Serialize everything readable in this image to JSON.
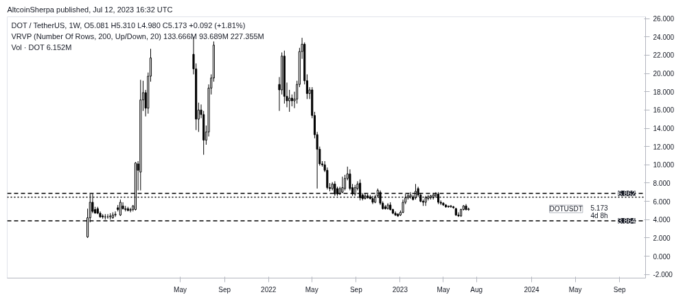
{
  "chart_data": {
    "type": "candlestick",
    "title": "DOT / TetherUS, 1W, O5.081 H5.310 L4.980 C5.173 +0.092 (+1.81%)",
    "subtitle": "VRVP (Number Of Rows, 200, Up/Down, 20) 133.666M 93.689M 227.355M",
    "annotations": [
      "AltcoinSherpa published, Jul 12, 2023 16:32 UTC",
      "Vol · DOT 6.152M",
      "DOTUSDT",
      "5.173",
      "4d 8h"
    ],
    "x": [
      "2020-08-17",
      "2020-08-24",
      "2020-08-31",
      "2020-09-07",
      "2020-09-14",
      "2020-09-21",
      "2020-09-28",
      "2020-10-05",
      "2020-10-12",
      "2020-10-19",
      "2020-10-26",
      "2020-11-02",
      "2020-11-09",
      "2020-11-16",
      "2020-11-23",
      "2020-11-30",
      "2020-12-07",
      "2020-12-14",
      "2020-12-21",
      "2020-12-28",
      "2021-01-04",
      "2021-01-11",
      "2021-01-18",
      "2021-01-25",
      "2021-02-01",
      "2021-02-08",
      "2021-06-07",
      "2021-06-14",
      "2021-06-21",
      "2021-06-28",
      "2021-07-05",
      "2021-07-12",
      "2021-07-19",
      "2021-07-26",
      "2021-08-02",
      "2022-01-31",
      "2022-02-07",
      "2022-02-14",
      "2022-02-21",
      "2022-02-28",
      "2022-03-07",
      "2022-03-14",
      "2022-03-21",
      "2022-03-28",
      "2022-04-04",
      "2022-04-11",
      "2022-04-18",
      "2022-04-25",
      "2022-05-02",
      "2022-05-09",
      "2022-05-16",
      "2022-05-23",
      "2022-05-30",
      "2022-06-06",
      "2022-06-13",
      "2022-06-20",
      "2022-06-27",
      "2022-07-04",
      "2022-07-11",
      "2022-07-18",
      "2022-07-25",
      "2022-08-01",
      "2022-08-08",
      "2022-08-15",
      "2022-08-22",
      "2022-08-29",
      "2022-09-05",
      "2022-09-12",
      "2022-09-19",
      "2022-09-26",
      "2022-10-03",
      "2022-10-10",
      "2022-10-17",
      "2022-10-24",
      "2022-10-31",
      "2022-11-07",
      "2022-11-14",
      "2022-11-21",
      "2022-11-28",
      "2022-12-05",
      "2022-12-12",
      "2022-12-19",
      "2022-12-26",
      "2023-01-02",
      "2023-01-09",
      "2023-01-16",
      "2023-01-23",
      "2023-01-30",
      "2023-02-06",
      "2023-02-13",
      "2023-02-20",
      "2023-02-27",
      "2023-03-06",
      "2023-03-13",
      "2023-03-20",
      "2023-03-27",
      "2023-04-03",
      "2023-04-10",
      "2023-04-17",
      "2023-04-24",
      "2023-05-01",
      "2023-05-08",
      "2023-05-15",
      "2023-05-22",
      "2023-05-29",
      "2023-06-05",
      "2023-06-12",
      "2023-06-19",
      "2023-06-26",
      "2023-07-03",
      "2023-07-10"
    ],
    "ohlc": [
      [
        2.1,
        5.2,
        2.0,
        4.2
      ],
      [
        4.2,
        6.8,
        3.7,
        5.9
      ],
      [
        5.9,
        6.862,
        4.7,
        4.9
      ],
      [
        5.1,
        5.4,
        4.7,
        4.7
      ],
      [
        5.2,
        5.4,
        4.6,
        4.7
      ],
      [
        4.7,
        4.9,
        4.2,
        4.3
      ],
      [
        4.4,
        4.6,
        4.1,
        4.3
      ],
      [
        4.3,
        4.6,
        4.0,
        4.3
      ],
      [
        4.3,
        4.6,
        4.1,
        4.3
      ],
      [
        4.3,
        4.7,
        4.0,
        4.4
      ],
      [
        4.2,
        4.8,
        4.1,
        4.5
      ],
      [
        4.5,
        4.9,
        4.3,
        4.6
      ],
      [
        5.3,
        5.6,
        4.9,
        5.1
      ],
      [
        4.5,
        6.2,
        4.4,
        5.9
      ],
      [
        5.5,
        5.9,
        5.1,
        5.2
      ],
      [
        5.1,
        5.5,
        4.9,
        5.2
      ],
      [
        5.2,
        5.4,
        4.9,
        5.0
      ],
      [
        5.0,
        5.3,
        4.8,
        5.1
      ],
      [
        5.1,
        5.6,
        4.9,
        5.5
      ],
      [
        5.1,
        10.3,
        5.0,
        10.2
      ],
      [
        10.1,
        10.4,
        7.2,
        9.4
      ],
      [
        9.2,
        19.3,
        7.2,
        17.1
      ],
      [
        17.1,
        19.2,
        15.9,
        17.9
      ],
      [
        17.9,
        18.2,
        15.3,
        16.2
      ],
      [
        16.2,
        20.1,
        15.6,
        19.7
      ],
      [
        19.7,
        22.7,
        19.1,
        21.7
      ],
      [
        22.1,
        24.0,
        19.9,
        20.5
      ],
      [
        20.5,
        21.1,
        13.8,
        15.0
      ],
      [
        15.0,
        16.8,
        13.6,
        16.0
      ],
      [
        16.0,
        16.6,
        15.1,
        15.5
      ],
      [
        15.5,
        15.9,
        11.1,
        12.7
      ],
      [
        12.7,
        14.3,
        12.2,
        13.6
      ],
      [
        13.6,
        18.8,
        13.1,
        18.4
      ],
      [
        18.4,
        19.9,
        17.7,
        19.5
      ],
      [
        19.5,
        23.5,
        19.1,
        23.1
      ],
      [
        18.8,
        19.6,
        15.9,
        18.2
      ],
      [
        18.2,
        22.3,
        17.7,
        21.9
      ],
      [
        21.9,
        22.5,
        16.7,
        17.5
      ],
      [
        17.5,
        19.0,
        16.3,
        17.0
      ],
      [
        17.0,
        18.2,
        15.8,
        17.3
      ],
      [
        17.3,
        17.7,
        16.4,
        17.0
      ],
      [
        17.0,
        18.0,
        16.2,
        17.2
      ],
      [
        17.2,
        19.2,
        16.7,
        18.8
      ],
      [
        18.8,
        22.8,
        18.5,
        22.4
      ],
      [
        22.4,
        23.9,
        21.6,
        23.2
      ],
      [
        23.2,
        23.4,
        18.8,
        19.2
      ],
      [
        19.2,
        19.9,
        17.2,
        17.8
      ],
      [
        17.8,
        18.5,
        17.2,
        18.2
      ],
      [
        18.2,
        18.5,
        15.1,
        15.4
      ],
      [
        15.4,
        15.8,
        12.9,
        13.3
      ],
      [
        13.3,
        13.6,
        7.4,
        11.7
      ],
      [
        11.7,
        12.0,
        9.9,
        10.1
      ],
      [
        10.1,
        10.4,
        9.8,
        10.0
      ],
      [
        10.0,
        10.4,
        9.2,
        9.4
      ],
      [
        9.4,
        9.7,
        7.3,
        7.5
      ],
      [
        7.5,
        8.0,
        7.1,
        7.4
      ],
      [
        7.4,
        8.1,
        7.2,
        7.9
      ],
      [
        7.9,
        8.2,
        6.6,
        6.8
      ],
      [
        7.4,
        7.6,
        6.6,
        6.8
      ],
      [
        6.8,
        7.6,
        6.7,
        7.4
      ],
      [
        7.0,
        8.7,
        6.9,
        7.5
      ],
      [
        7.4,
        8.9,
        7.2,
        8.5
      ],
      [
        8.5,
        9.8,
        8.3,
        9.0
      ],
      [
        9.0,
        9.5,
        7.2,
        7.4
      ],
      [
        7.5,
        7.9,
        6.6,
        6.8
      ],
      [
        6.8,
        7.8,
        6.6,
        7.5
      ],
      [
        7.4,
        8.2,
        7.2,
        7.9
      ],
      [
        8.0,
        8.4,
        6.1,
        6.4
      ],
      [
        6.7,
        6.9,
        6.1,
        6.3
      ],
      [
        6.3,
        6.9,
        6.2,
        6.6
      ],
      [
        6.6,
        6.8,
        6.3,
        6.4
      ],
      [
        6.5,
        6.7,
        6.2,
        6.3
      ],
      [
        6.3,
        6.6,
        5.7,
        5.9
      ],
      [
        5.9,
        6.7,
        5.8,
        6.5
      ],
      [
        6.6,
        7.4,
        6.4,
        7.2
      ],
      [
        7.0,
        7.2,
        5.6,
        5.8
      ],
      [
        5.8,
        6.0,
        5.1,
        5.2
      ],
      [
        5.4,
        5.6,
        5.1,
        5.2
      ],
      [
        5.2,
        5.8,
        5.1,
        5.6
      ],
      [
        5.6,
        5.9,
        5.0,
        5.1
      ],
      [
        5.1,
        5.2,
        4.6,
        4.7
      ],
      [
        4.7,
        4.9,
        4.4,
        4.5
      ],
      [
        4.6,
        4.7,
        4.3,
        4.4
      ],
      [
        4.5,
        5.0,
        4.4,
        4.8
      ],
      [
        4.8,
        6.2,
        4.7,
        5.9
      ],
      [
        5.9,
        6.8,
        5.7,
        6.4
      ],
      [
        6.4,
        6.9,
        6.2,
        6.6
      ],
      [
        6.5,
        7.0,
        6.3,
        6.7
      ],
      [
        6.5,
        6.7,
        6.1,
        6.2
      ],
      [
        6.4,
        7.9,
        6.2,
        7.1
      ],
      [
        7.4,
        7.6,
        6.5,
        6.7
      ],
      [
        6.7,
        6.9,
        5.9,
        6.0
      ],
      [
        6.0,
        6.2,
        5.5,
        5.9
      ],
      [
        5.9,
        6.6,
        5.5,
        6.4
      ],
      [
        6.3,
        6.7,
        6.1,
        6.5
      ],
      [
        6.4,
        6.7,
        6.2,
        6.6
      ],
      [
        6.4,
        6.9,
        6.2,
        6.7
      ],
      [
        6.6,
        7.0,
        6.4,
        6.8
      ],
      [
        6.8,
        7.0,
        5.7,
        5.9
      ],
      [
        5.9,
        6.1,
        5.6,
        5.8
      ],
      [
        5.8,
        5.9,
        5.5,
        5.6
      ],
      [
        5.6,
        5.7,
        5.3,
        5.4
      ],
      [
        5.4,
        5.5,
        5.3,
        5.5
      ],
      [
        5.4,
        5.6,
        5.3,
        5.5
      ],
      [
        5.4,
        5.5,
        5.2,
        5.3
      ],
      [
        5.2,
        5.3,
        4.4,
        4.5
      ],
      [
        4.5,
        4.8,
        4.3,
        4.4
      ],
      [
        4.4,
        5.2,
        4.3,
        5.1
      ],
      [
        5.1,
        5.6,
        5.0,
        5.5
      ],
      [
        5.5,
        5.7,
        5.0,
        5.1
      ],
      [
        5.081,
        5.31,
        4.98,
        5.173
      ]
    ],
    "xlim": [
      "2020-01-07",
      "2024-11-12"
    ],
    "xticks": [
      {
        "value": "2021-05-01",
        "label": "May"
      },
      {
        "value": "2021-09-01",
        "label": "Sep"
      },
      {
        "value": "2022-01-01",
        "label": "2022"
      },
      {
        "value": "2022-05-01",
        "label": "May"
      },
      {
        "value": "2022-09-01",
        "label": "Sep"
      },
      {
        "value": "2023-01-01",
        "label": "2023"
      },
      {
        "value": "2023-05-01",
        "label": "May"
      },
      {
        "value": "2023-08-01",
        "label": "Aug"
      },
      {
        "value": "2024-01-01",
        "label": "2024"
      },
      {
        "value": "2024-05-01",
        "label": "May"
      },
      {
        "value": "2024-09-01",
        "label": "Sep"
      }
    ],
    "ylim": [
      -2.4,
      26.2
    ],
    "yticks": [
      {
        "value": -2,
        "label": "-2.000"
      },
      {
        "value": 0,
        "label": "0.000"
      },
      {
        "value": 2,
        "label": "2.000"
      },
      {
        "value": 4,
        "label": "4.000"
      },
      {
        "value": 6,
        "label": "6.000"
      },
      {
        "value": 8,
        "label": "8.000"
      },
      {
        "value": 10,
        "label": "10.000"
      },
      {
        "value": 12,
        "label": "12.000"
      },
      {
        "value": 14,
        "label": "14.000"
      },
      {
        "value": 16,
        "label": "16.000"
      },
      {
        "value": 18,
        "label": "18.000"
      },
      {
        "value": 20,
        "label": "20.000"
      },
      {
        "value": 22,
        "label": "22.000"
      },
      {
        "value": 24,
        "label": "24.000"
      },
      {
        "value": 26,
        "label": "26.000"
      }
    ],
    "ref_lines": [
      {
        "axis": "y",
        "value": 6.862,
        "label": "6.862",
        "line_style": "dashed",
        "color": "#000000"
      },
      {
        "axis": "y",
        "value": 3.864,
        "label": "3.864",
        "line_style": "dashed",
        "color": "#000000"
      },
      {
        "axis": "y",
        "value": 6.45,
        "line_style": "dotted",
        "color": "#000000"
      }
    ],
    "grid": false
  }
}
